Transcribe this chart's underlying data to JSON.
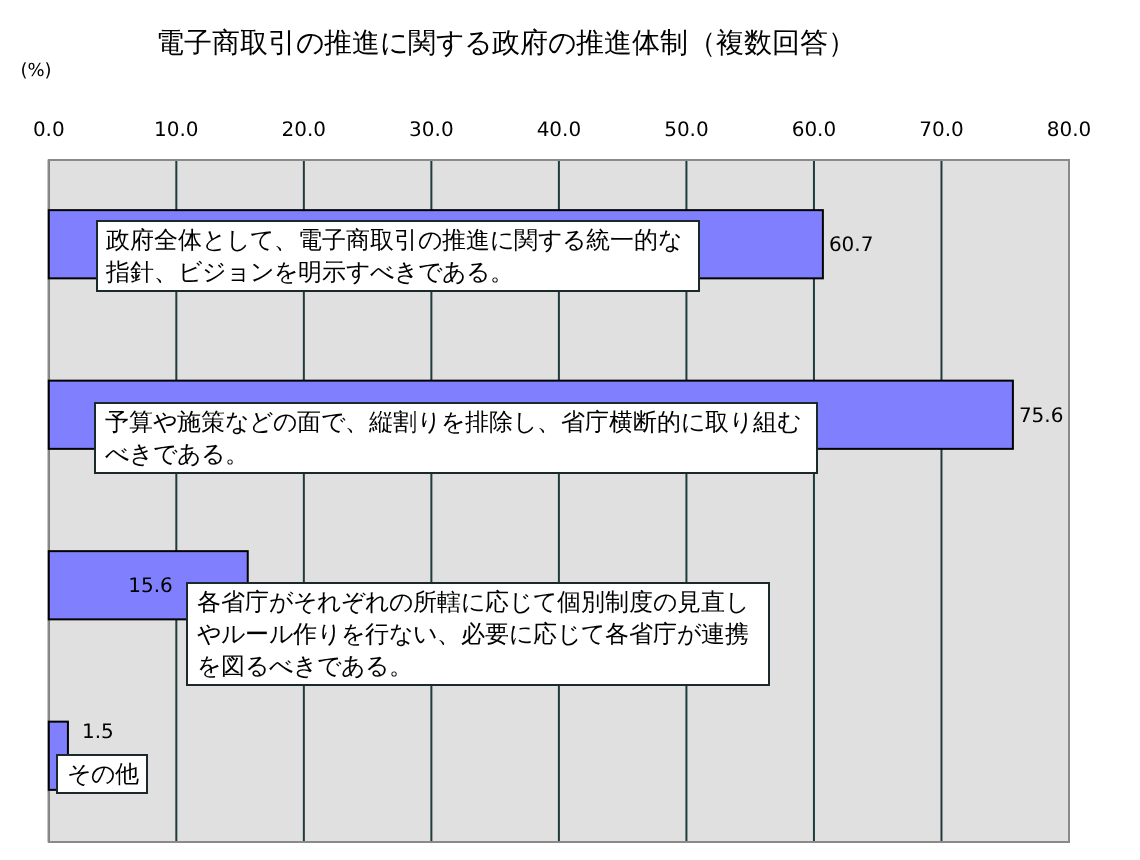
{
  "chart_data": {
    "type": "bar",
    "orientation": "horizontal",
    "title": "電子商取引の推進に関する政府の推進体制（複数回答）",
    "xlabel": "(%)",
    "categories": [
      "政府全体として、電子商取引の推進に関する統一的な指針、ビジョンを明示すべきである。",
      "予算や施策などの面で、縦割りを排除し、省庁横断的に取り組むべきである。",
      "各省庁がそれぞれの所轄に応じて個別制度の見直しやルール作りを行ない、必要に応じて各省庁が連携を図るべきである。",
      "その他"
    ],
    "values": [
      60.7,
      75.6,
      15.6,
      1.5
    ],
    "color": "#8080ff",
    "xlim": [
      0,
      80
    ],
    "xticks": [
      {
        "value": 0,
        "label": "0.0"
      },
      {
        "value": 10,
        "label": "10.0"
      },
      {
        "value": 20,
        "label": "20.0"
      },
      {
        "value": 30,
        "label": "30.0"
      },
      {
        "value": 40,
        "label": "40.0"
      },
      {
        "value": 50,
        "label": "50.0"
      },
      {
        "value": 60,
        "label": "60.0"
      },
      {
        "value": 70,
        "label": "70.0"
      },
      {
        "value": 80,
        "label": "80.0"
      }
    ],
    "grid": "x",
    "data_labels": true
  }
}
